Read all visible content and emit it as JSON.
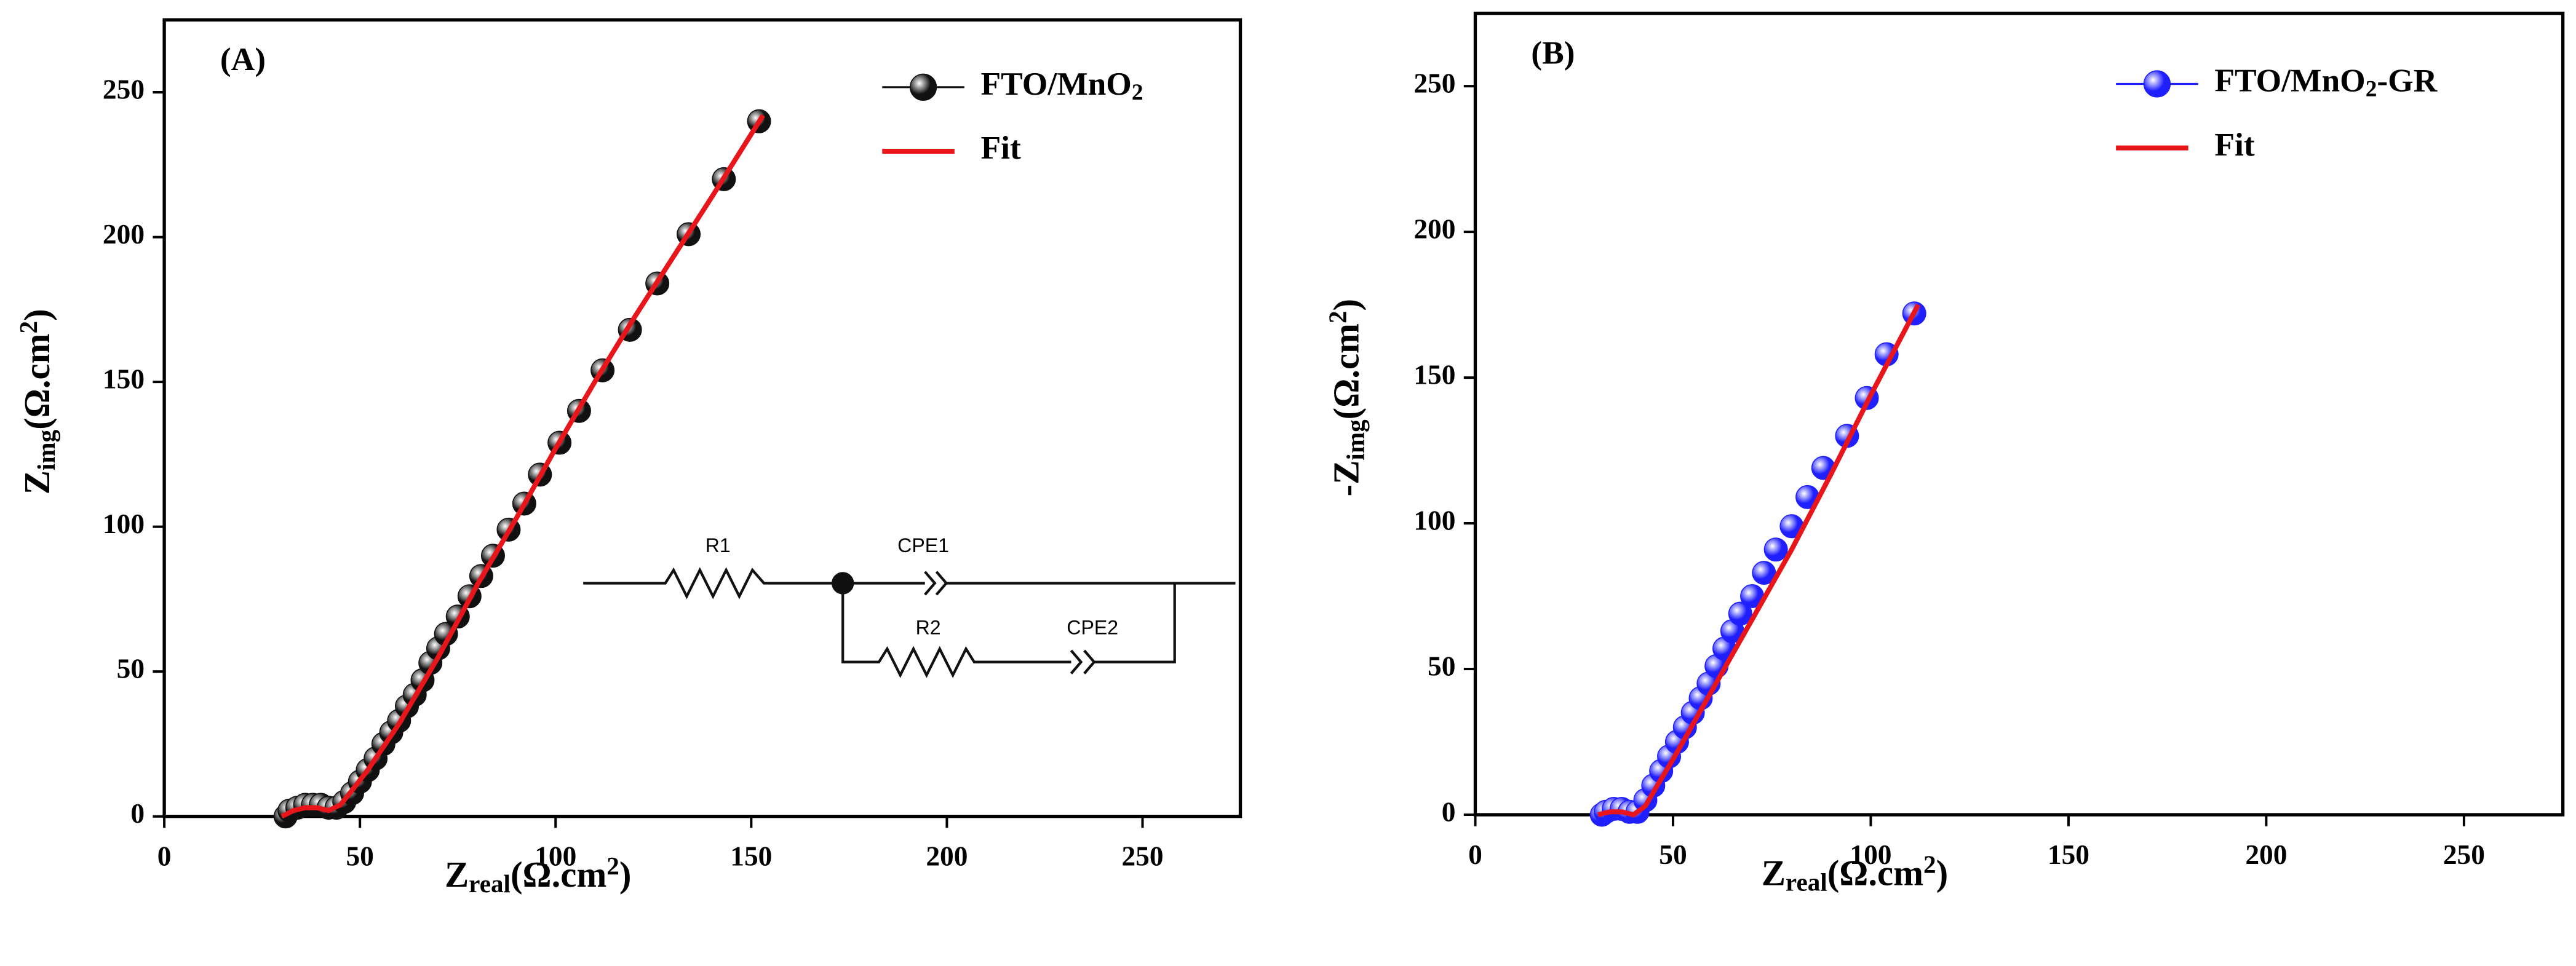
{
  "chart_data": [
    {
      "type": "scatter",
      "panel_label": "(A)",
      "xlabel": [
        "Z",
        "real",
        "(Ω.cm",
        "2",
        ")"
      ],
      "ylabel": [
        "Z",
        "img",
        "(Ω.cm",
        "2",
        ")"
      ],
      "xlim": [
        0,
        275
      ],
      "ylim": [
        0,
        275
      ],
      "xticks": [
        0,
        50,
        100,
        150,
        200,
        250
      ],
      "yticks": [
        0,
        50,
        100,
        150,
        200,
        250
      ],
      "legend": "upper right",
      "series": [
        {
          "name": [
            "FTO/MnO",
            "2"
          ],
          "color": "#111111",
          "style": "markers",
          "x": [
            31,
            32,
            34,
            36,
            38,
            40,
            42,
            44,
            46,
            48,
            50,
            52,
            54,
            56,
            58,
            60,
            62,
            64,
            66,
            68,
            70,
            72,
            75,
            78,
            81,
            84,
            88,
            92,
            96,
            101,
            106,
            112,
            119,
            126,
            134,
            143,
            152
          ],
          "values": [
            0,
            2,
            3,
            4,
            4,
            4,
            3,
            3,
            5,
            8,
            12,
            16,
            20,
            25,
            29,
            33,
            38,
            42,
            47,
            53,
            58,
            63,
            69,
            76,
            83,
            90,
            99,
            108,
            118,
            129,
            140,
            154,
            168,
            184,
            201,
            220,
            240
          ]
        },
        {
          "name": "Fit",
          "color": "#e8161b",
          "style": "line",
          "x": [
            30,
            33,
            36,
            39,
            42,
            45,
            48,
            52,
            56,
            60,
            70,
            80,
            90,
            100,
            110,
            120,
            130,
            140,
            153
          ],
          "values": [
            0,
            2,
            3,
            3,
            2,
            4,
            9,
            16,
            24,
            32,
            55,
            80,
            103,
            127,
            150,
            172,
            193,
            214,
            242
          ]
        }
      ],
      "inset": {
        "labels": [
          "R1",
          "CPE1",
          "R2",
          "CPE2"
        ]
      }
    },
    {
      "type": "scatter",
      "panel_label": "(B)",
      "xlabel": [
        "Z",
        "real",
        "(Ω.cm",
        "2",
        ")"
      ],
      "ylabel": [
        "-Z",
        "img",
        "(Ω.cm",
        "2",
        ")"
      ],
      "xlim": [
        0,
        275
      ],
      "ylim": [
        0,
        275
      ],
      "xticks": [
        0,
        50,
        100,
        150,
        200,
        250
      ],
      "yticks": [
        0,
        50,
        100,
        150,
        200,
        250
      ],
      "legend": "upper right",
      "series": [
        {
          "name": [
            "FTO/MnO",
            "2",
            "-GR"
          ],
          "color": "#1f1fff",
          "style": "markers",
          "x": [
            32,
            33,
            35,
            37,
            39,
            41,
            43,
            45,
            47,
            49,
            51,
            53,
            55,
            57,
            59,
            61,
            63,
            65,
            67,
            70,
            73,
            76,
            80,
            84,
            88,
            94,
            99,
            104,
            111
          ],
          "values": [
            0,
            1,
            2,
            2,
            1,
            1,
            5,
            10,
            15,
            20,
            25,
            30,
            35,
            40,
            45,
            51,
            57,
            63,
            69,
            75,
            83,
            91,
            99,
            109,
            119,
            130,
            143,
            158,
            172
          ]
        },
        {
          "name": "Fit",
          "color": "#e8161b",
          "style": "line",
          "x": [
            31,
            34,
            37,
            40,
            43,
            46,
            50,
            55,
            60,
            70,
            80,
            90,
            100,
            112
          ],
          "values": [
            0,
            1,
            1,
            0,
            3,
            10,
            19,
            31,
            43,
            67,
            91,
            117,
            144,
            175
          ]
        }
      ]
    }
  ]
}
